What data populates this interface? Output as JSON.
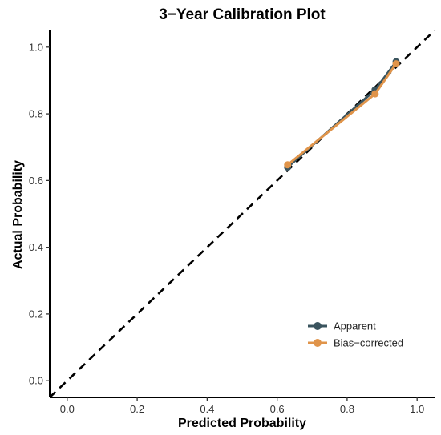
{
  "chart_data": {
    "type": "line",
    "title": "3−Year Calibration Plot",
    "xlabel": "Predicted Probability",
    "ylabel": "Actual Probability",
    "xlim": [
      -0.05,
      1.05
    ],
    "ylim": [
      -0.05,
      1.05
    ],
    "x_ticks": [
      0.0,
      0.2,
      0.4,
      0.6,
      0.8,
      1.0
    ],
    "y_ticks": [
      0.0,
      0.2,
      0.4,
      0.6,
      0.8,
      1.0
    ],
    "x_tick_labels": [
      "0.0",
      "0.2",
      "0.4",
      "0.6",
      "0.8",
      "1.0"
    ],
    "y_tick_labels": [
      "0.0",
      "0.2",
      "0.4",
      "0.6",
      "0.8",
      "1.0"
    ],
    "grid": false,
    "reference_line": {
      "style": "dashed",
      "from": [
        -0.05,
        -0.05
      ],
      "to": [
        1.05,
        1.05
      ],
      "color": "#000000"
    },
    "legend_position": "bottom-right",
    "series": [
      {
        "name": "Apparent",
        "color": "#3a545e",
        "x": [
          0.63,
          0.88,
          0.94
        ],
        "y": [
          0.64,
          0.872,
          0.956
        ]
      },
      {
        "name": "Bias−corrected",
        "color": "#e0944a",
        "x": [
          0.63,
          0.88,
          0.94
        ],
        "y": [
          0.647,
          0.86,
          0.95
        ]
      }
    ]
  }
}
